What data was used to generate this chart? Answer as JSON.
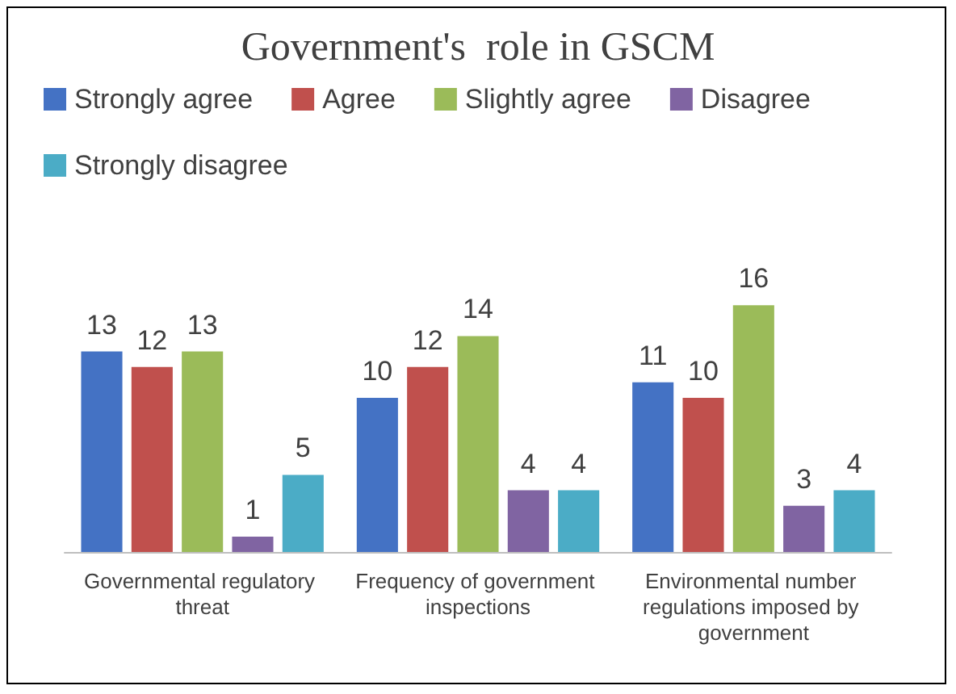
{
  "chart_data": {
    "type": "bar",
    "title": "Government's  role in GSCM",
    "categories": [
      "Governmental regulatory threat",
      "Frequency of government inspections",
      "Environmental number regulations imposed by government"
    ],
    "series": [
      {
        "name": "Strongly agree",
        "color": "#4472c4",
        "values": [
          13,
          10,
          11
        ]
      },
      {
        "name": "Agree",
        "color": "#c0504d",
        "values": [
          12,
          12,
          10
        ]
      },
      {
        "name": "Slightly agree",
        "color": "#9bbb59",
        "values": [
          13,
          14,
          16
        ]
      },
      {
        "name": "Disagree",
        "color": "#8064a2",
        "values": [
          1,
          4,
          3
        ]
      },
      {
        "name": "Strongly disagree",
        "color": "#4bacc6",
        "values": [
          5,
          4,
          4
        ]
      }
    ],
    "data_labels": true,
    "legend": "top",
    "grid": false
  }
}
